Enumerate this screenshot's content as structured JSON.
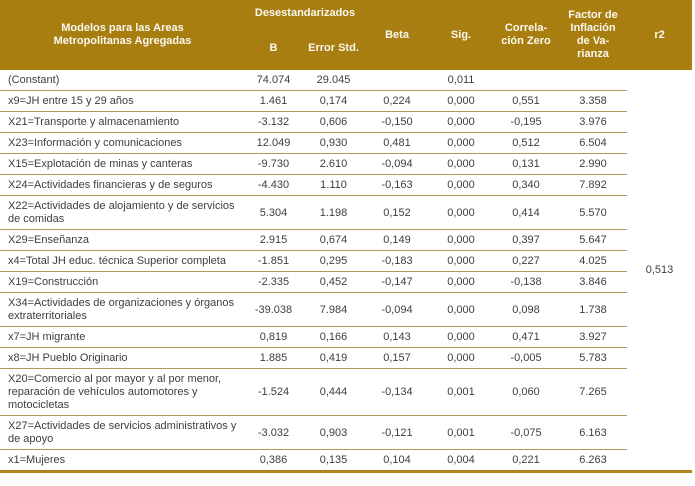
{
  "table": {
    "header": {
      "models": "Modelos para las Areas Metropolitanas Agregadas",
      "desestandarizados": "Desestandarizados",
      "b": "B",
      "error_std": "Error Std.",
      "beta": "Beta",
      "sig": "Sig.",
      "correlacion_zero": "Correla-\nción Zero",
      "factor_inflacion": "Factor de\nInflación\nde Va-\nrianza",
      "r2": "r2"
    },
    "rows": [
      {
        "label": "(Constant)",
        "b": "74.074",
        "error_std": "29.045",
        "beta": "",
        "sig": "0,011",
        "correlacion_zero": "",
        "vif": ""
      },
      {
        "label": "x9=JH entre 15 y 29 años",
        "b": "1.461",
        "error_std": "0,174",
        "beta": "0,224",
        "sig": "0,000",
        "correlacion_zero": "0,551",
        "vif": "3.358"
      },
      {
        "label": "X21=Transporte y almacenamiento",
        "b": "-3.132",
        "error_std": "0,606",
        "beta": "-0,150",
        "sig": "0,000",
        "correlacion_zero": "-0,195",
        "vif": "3.976"
      },
      {
        "label": "X23=Información y comunicaciones",
        "b": "12.049",
        "error_std": "0,930",
        "beta": "0,481",
        "sig": "0,000",
        "correlacion_zero": "0,512",
        "vif": "6.504"
      },
      {
        "label": "X15=Explotación de minas y canteras",
        "b": "-9.730",
        "error_std": "2.610",
        "beta": "-0,094",
        "sig": "0,000",
        "correlacion_zero": "0,131",
        "vif": "2.990"
      },
      {
        "label": "X24=Actividades financieras y de seguros",
        "b": "-4.430",
        "error_std": "1.110",
        "beta": "-0,163",
        "sig": "0,000",
        "correlacion_zero": "0,340",
        "vif": "7.892"
      },
      {
        "label": "X22=Actividades de alojamiento y de servicios de comidas",
        "b": "5.304",
        "error_std": "1.198",
        "beta": "0,152",
        "sig": "0,000",
        "correlacion_zero": "0,414",
        "vif": "5.570"
      },
      {
        "label": "X29=Enseñanza",
        "b": "2.915",
        "error_std": "0,674",
        "beta": "0,149",
        "sig": "0,000",
        "correlacion_zero": "0,397",
        "vif": "5.647"
      },
      {
        "label": "x4=Total JH educ. técnica Superior completa",
        "b": "-1.851",
        "error_std": "0,295",
        "beta": "-0,183",
        "sig": "0,000",
        "correlacion_zero": "0,227",
        "vif": "4.025"
      },
      {
        "label": "X19=Construcción",
        "b": "-2.335",
        "error_std": "0,452",
        "beta": "-0,147",
        "sig": "0,000",
        "correlacion_zero": "-0,138",
        "vif": "3.846"
      },
      {
        "label": "X34=Actividades de organizaciones y órganos extraterritoriales",
        "b": "-39.038",
        "error_std": "7.984",
        "beta": "-0,094",
        "sig": "0,000",
        "correlacion_zero": "0,098",
        "vif": "1.738"
      },
      {
        "label": "x7=JH migrante",
        "b": "0,819",
        "error_std": "0,166",
        "beta": "0,143",
        "sig": "0,000",
        "correlacion_zero": "0,471",
        "vif": "3.927"
      },
      {
        "label": "x8=JH Pueblo Originario",
        "b": "1.885",
        "error_std": "0,419",
        "beta": "0,157",
        "sig": "0,000",
        "correlacion_zero": "-0,005",
        "vif": "5.783"
      },
      {
        "label": "X20=Comercio al por mayor y al por menor, reparación de vehículos automotores y motocicletas",
        "b": "-1.524",
        "error_std": "0,444",
        "beta": "-0,134",
        "sig": "0,001",
        "correlacion_zero": "0,060",
        "vif": "7.265"
      },
      {
        "label": "X27=Actividades de servicios administrativos y de apoyo",
        "b": "-3.032",
        "error_std": "0,903",
        "beta": "-0,121",
        "sig": "0,001",
        "correlacion_zero": "-0,075",
        "vif": "6.163"
      },
      {
        "label": "x1=Mujeres",
        "b": "0,386",
        "error_std": "0,135",
        "beta": "0,104",
        "sig": "0,004",
        "correlacion_zero": "0,221",
        "vif": "6.263"
      }
    ],
    "r2_value": "0,513"
  },
  "colors": {
    "header_bg": "#a87e11",
    "header_text": "#fbf8f0",
    "body_text": "#3e3e3e",
    "row_line": "#ae9b57",
    "bottom_border": "#b0861a",
    "page_bg": "#ffffff"
  }
}
